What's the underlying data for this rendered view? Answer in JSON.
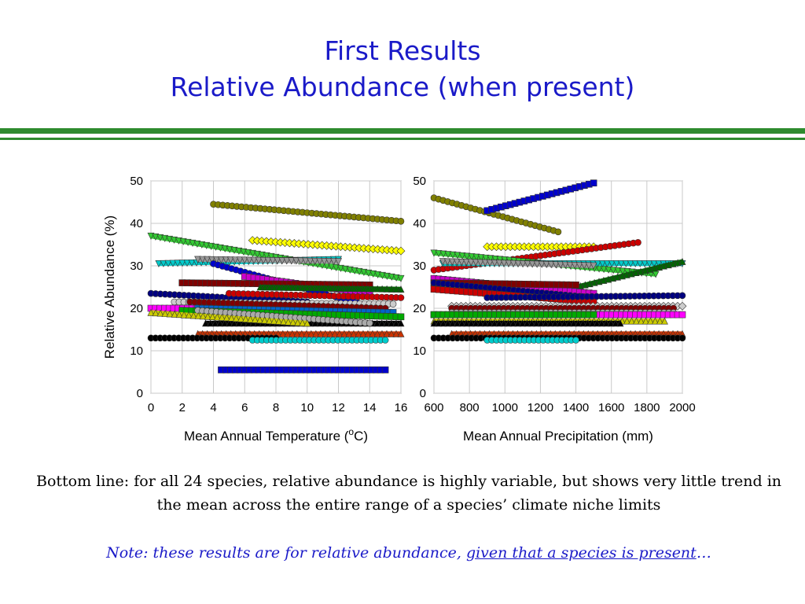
{
  "slide": {
    "title_line1": "First Results",
    "title_line2": "Relative Abundance (when present)",
    "bottom_line": "Bottom line:  for all 24 species, relative abundance is highly variable, but shows very little trend in the mean across the entire range of a species’ climate niche limits",
    "note_prefix": "Note:  these results are for relative abundance, ",
    "note_underlined": "given that a species is present",
    "note_suffix": "…"
  },
  "colors": {
    "title": "#1a1ac8",
    "rule": "#2e8b2e",
    "plot_bg": "#ffffff"
  },
  "chart_data": [
    {
      "type": "line",
      "xlabel": "Mean Annual Temperature (oC)",
      "xlabel_main": "Mean Annual Temperature (",
      "xlabel_sup": "o",
      "xlabel_end": "C)",
      "ylabel": "Relative Abundance (%)",
      "xlim": [
        0,
        16
      ],
      "ylim": [
        0,
        50
      ],
      "xticks": [
        0,
        2,
        4,
        6,
        8,
        10,
        12,
        14,
        16
      ],
      "yticks": [
        0,
        10,
        20,
        30,
        40,
        50
      ],
      "grid": true,
      "series": [
        {
          "color": "#808000",
          "marker": "circle",
          "x": [
            4,
            16
          ],
          "y": [
            44.5,
            40.5
          ]
        },
        {
          "color": "#ffff00",
          "marker": "diamond",
          "x": [
            6.5,
            16
          ],
          "y": [
            36,
            33.5
          ]
        },
        {
          "color": "#33cc33",
          "marker": "triangle-down",
          "x": [
            0,
            16
          ],
          "y": [
            37,
            27
          ]
        },
        {
          "color": "#00cccc",
          "marker": "triangle-down",
          "x": [
            0.5,
            12
          ],
          "y": [
            30.5,
            31.5
          ]
        },
        {
          "color": "#999999",
          "marker": "triangle-down",
          "x": [
            3,
            12
          ],
          "y": [
            31.5,
            31
          ]
        },
        {
          "color": "#0000cc",
          "marker": "circle",
          "x": [
            4,
            15
          ],
          "y": [
            30.5,
            19.5
          ]
        },
        {
          "color": "#cc00cc",
          "marker": "square",
          "x": [
            6,
            14
          ],
          "y": [
            27.5,
            23.5
          ]
        },
        {
          "color": "#800000",
          "marker": "square",
          "x": [
            2,
            14
          ],
          "y": [
            26,
            25.5
          ]
        },
        {
          "color": "#006600",
          "marker": "triangle-up",
          "x": [
            7,
            16
          ],
          "y": [
            25,
            24.5
          ]
        },
        {
          "color": "#000080",
          "marker": "circle",
          "x": [
            0,
            10
          ],
          "y": [
            23.5,
            21.5
          ]
        },
        {
          "color": "#cc0000",
          "marker": "circle",
          "x": [
            5,
            16
          ],
          "y": [
            23.5,
            22.5
          ]
        },
        {
          "color": "#cccccc",
          "marker": "circle",
          "x": [
            1.5,
            15.5
          ],
          "y": [
            21.5,
            21
          ]
        },
        {
          "color": "#800000",
          "marker": "circle",
          "x": [
            2.5,
            15
          ],
          "y": [
            21.5,
            20
          ]
        },
        {
          "color": "#ff00ff",
          "marker": "square",
          "x": [
            0,
            3.5
          ],
          "y": [
            20,
            20
          ]
        },
        {
          "color": "#0066cc",
          "marker": "square",
          "x": [
            3,
            15.5
          ],
          "y": [
            20,
            19
          ]
        },
        {
          "color": "#000000",
          "marker": "triangle-up",
          "x": [
            3.5,
            16
          ],
          "y": [
            16.5,
            16.5
          ]
        },
        {
          "color": "#00aa00",
          "marker": "square",
          "x": [
            2,
            16
          ],
          "y": [
            19.5,
            18
          ]
        },
        {
          "color": "#aaaaaa",
          "marker": "circle",
          "x": [
            3,
            14
          ],
          "y": [
            19.5,
            16.5
          ]
        },
        {
          "color": "#cccc00",
          "marker": "triangle-up",
          "x": [
            0,
            10
          ],
          "y": [
            19,
            16.5
          ]
        },
        {
          "color": "#cc3300",
          "marker": "triangle-up",
          "x": [
            3,
            16
          ],
          "y": [
            14,
            14
          ]
        },
        {
          "color": "#000000",
          "marker": "circle",
          "x": [
            0,
            8
          ],
          "y": [
            13,
            13
          ]
        },
        {
          "color": "#00cccc",
          "marker": "circle",
          "x": [
            6.5,
            15
          ],
          "y": [
            12.5,
            12.5
          ]
        },
        {
          "color": "#0000cc",
          "marker": "square",
          "x": [
            4.5,
            15
          ],
          "y": [
            5.5,
            5.5
          ]
        }
      ]
    },
    {
      "type": "line",
      "xlabel": "Mean Annual Precipitation (mm)",
      "ylabel": "",
      "xlim": [
        600,
        2000
      ],
      "ylim": [
        0,
        50
      ],
      "xticks": [
        600,
        800,
        1000,
        1200,
        1400,
        1600,
        1800,
        2000
      ],
      "yticks": [
        0,
        10,
        20,
        30,
        40,
        50
      ],
      "grid": true,
      "series": [
        {
          "color": "#808000",
          "marker": "circle",
          "x": [
            600,
            1300
          ],
          "y": [
            46,
            38
          ]
        },
        {
          "color": "#0000cc",
          "marker": "square",
          "x": [
            900,
            1500
          ],
          "y": [
            43,
            49.5
          ]
        },
        {
          "color": "#ffff00",
          "marker": "diamond",
          "x": [
            900,
            1500
          ],
          "y": [
            34.5,
            34.5
          ]
        },
        {
          "color": "#cc0000",
          "marker": "circle",
          "x": [
            600,
            1750
          ],
          "y": [
            29,
            35.5
          ]
        },
        {
          "color": "#33cc33",
          "marker": "triangle-down",
          "x": [
            600,
            1850
          ],
          "y": [
            33,
            28
          ]
        },
        {
          "color": "#00cccc",
          "marker": "triangle-down",
          "x": [
            650,
            2000
          ],
          "y": [
            30.5,
            30.5
          ]
        },
        {
          "color": "#999999",
          "marker": "triangle-down",
          "x": [
            650,
            1500
          ],
          "y": [
            31,
            30
          ]
        },
        {
          "color": "#006600",
          "marker": "triangle-up",
          "x": [
            1400,
            2000
          ],
          "y": [
            25,
            31
          ]
        },
        {
          "color": "#cc00cc",
          "marker": "square",
          "x": [
            600,
            1500
          ],
          "y": [
            27,
            23.5
          ]
        },
        {
          "color": "#800000",
          "marker": "square",
          "x": [
            600,
            1400
          ],
          "y": [
            26,
            25.5
          ]
        },
        {
          "color": "#000080",
          "marker": "circle",
          "x": [
            600,
            1500
          ],
          "y": [
            26,
            22.5
          ]
        },
        {
          "color": "#cc0000",
          "marker": "square",
          "x": [
            600,
            1500
          ],
          "y": [
            24.5,
            21.5
          ]
        },
        {
          "color": "#000080",
          "marker": "circle",
          "x": [
            900,
            2000
          ],
          "y": [
            22.5,
            23
          ]
        },
        {
          "color": "#cccccc",
          "marker": "diamond",
          "x": [
            700,
            2000
          ],
          "y": [
            20.5,
            20.5
          ]
        },
        {
          "color": "#800000",
          "marker": "circle",
          "x": [
            700,
            1950
          ],
          "y": [
            20,
            20
          ]
        },
        {
          "color": "#aaaaaa",
          "marker": "circle",
          "x": [
            700,
            1950
          ],
          "y": [
            19,
            19
          ]
        },
        {
          "color": "#ff00ff",
          "marker": "square",
          "x": [
            600,
            2000
          ],
          "y": [
            18.5,
            18.5
          ]
        },
        {
          "color": "#00aa00",
          "marker": "square",
          "x": [
            600,
            1500
          ],
          "y": [
            18.5,
            18.5
          ]
        },
        {
          "color": "#cccc00",
          "marker": "triangle-up",
          "x": [
            600,
            1900
          ],
          "y": [
            17,
            17
          ]
        },
        {
          "color": "#000000",
          "marker": "triangle-up",
          "x": [
            600,
            1650
          ],
          "y": [
            16.5,
            16.5
          ]
        },
        {
          "color": "#cc3300",
          "marker": "triangle-up",
          "x": [
            700,
            2000
          ],
          "y": [
            14,
            14
          ]
        },
        {
          "color": "#000000",
          "marker": "circle",
          "x": [
            600,
            2000
          ],
          "y": [
            13,
            13
          ]
        },
        {
          "color": "#00cccc",
          "marker": "circle",
          "x": [
            900,
            1400
          ],
          "y": [
            12.5,
            12.5
          ]
        }
      ]
    }
  ]
}
